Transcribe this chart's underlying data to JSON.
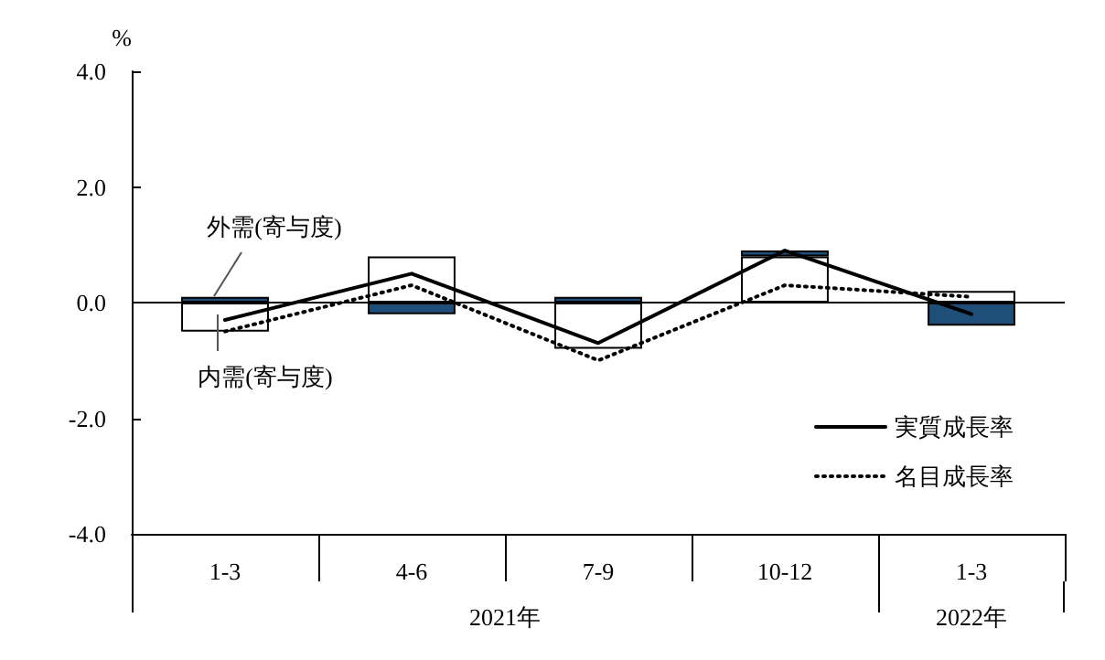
{
  "chart_data": {
    "type": "bar",
    "ylabel": "%",
    "categories": [
      "1-3",
      "4-6",
      "7-9",
      "10-12",
      "1-3"
    ],
    "stacked": true,
    "series": [
      {
        "name": "内需(寄与度)",
        "color": "#ffffff",
        "values": [
          -0.5,
          0.8,
          -0.8,
          0.8,
          0.2
        ]
      },
      {
        "name": "外需(寄与度)",
        "color": "#1f4e79",
        "values": [
          0.1,
          -0.2,
          0.1,
          0.1,
          -0.4
        ]
      },
      {
        "name": "実質成長率",
        "type": "line",
        "color": "#000000",
        "line_style": "solid",
        "values": [
          -0.3,
          0.5,
          -0.7,
          0.9,
          -0.2
        ]
      },
      {
        "name": "名目成長率",
        "type": "line",
        "color": "#000000",
        "line_style": "dotted",
        "values": [
          -0.5,
          0.3,
          -1.0,
          0.3,
          0.1
        ]
      }
    ],
    "ylim": [
      -4,
      4
    ],
    "yticks": [
      {
        "value": -4,
        "label": "-4.0"
      },
      {
        "value": -2,
        "label": "-2.0"
      },
      {
        "value": 0,
        "label": "0.0"
      },
      {
        "value": 2,
        "label": "2.0"
      },
      {
        "value": 4,
        "label": "4.0"
      }
    ],
    "ref_lines": [
      {
        "axis": "y",
        "value": 0,
        "color": "#000000"
      }
    ],
    "annotations": [
      "2021年",
      "2022年"
    ],
    "grid": false,
    "legend": "bottom right",
    "marker": "none"
  }
}
